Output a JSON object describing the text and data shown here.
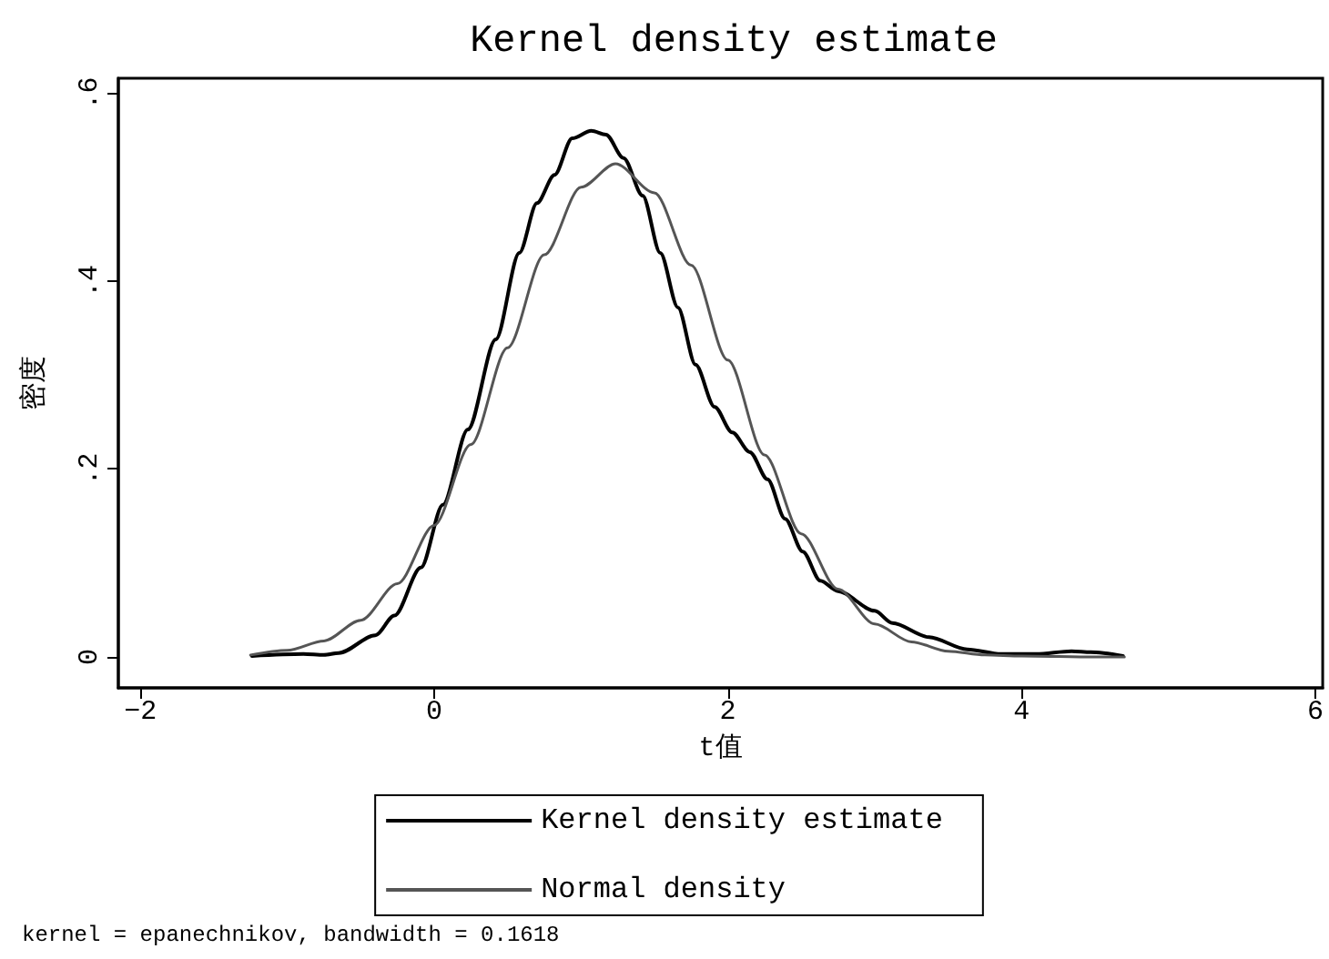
{
  "chart_data": {
    "type": "line",
    "title": "Kernel density estimate",
    "xlabel": "t值",
    "ylabel": "密度",
    "annotations": [
      "kernel = epanechnikov, bandwidth = 0.1618"
    ],
    "xlim": [
      -2.15,
      6.05
    ],
    "xticks": [
      -2,
      0,
      2,
      4,
      6
    ],
    "ylim": [
      -0.033,
      0.616
    ],
    "yticks": [
      0,
      {
        "value": 0.2,
        "label": ".2"
      },
      {
        "value": 0.4,
        "label": ".4"
      },
      {
        "value": 0.6,
        "label": ".6"
      }
    ],
    "grid": false,
    "legend": "bottom",
    "marker": "none",
    "line_style": "solid",
    "series": [
      {
        "name": "Kernel density estimate",
        "color": "#000000",
        "x": [
          -1.24,
          -0.89,
          -0.75,
          -0.65,
          -0.4,
          -0.27,
          -0.09,
          0.06,
          0.23,
          0.42,
          0.58,
          0.7,
          0.82,
          0.94,
          1.07,
          1.17,
          1.29,
          1.42,
          1.54,
          1.66,
          1.78,
          1.91,
          2.03,
          2.15,
          2.27,
          2.39,
          2.51,
          2.63,
          2.75,
          3.0,
          3.12,
          3.37,
          3.63,
          3.86,
          4.1,
          4.34,
          4.47,
          4.69
        ],
        "values": [
          0.001,
          0.003,
          0.002,
          0.004,
          0.023,
          0.044,
          0.095,
          0.162,
          0.242,
          0.338,
          0.43,
          0.483,
          0.513,
          0.552,
          0.56,
          0.556,
          0.531,
          0.491,
          0.43,
          0.372,
          0.311,
          0.266,
          0.239,
          0.218,
          0.189,
          0.147,
          0.112,
          0.081,
          0.07,
          0.049,
          0.036,
          0.021,
          0.008,
          0.003,
          0.003,
          0.006,
          0.005,
          0.001
        ]
      },
      {
        "name": "Normal density",
        "color": "#555555",
        "x": [
          -1.25,
          -1.0,
          -0.75,
          -0.5,
          -0.25,
          0,
          0.25,
          0.5,
          0.75,
          1.0,
          1.235,
          1.5,
          1.75,
          2.0,
          2.25,
          2.5,
          2.75,
          3.0,
          3.25,
          3.5,
          3.75,
          4.0,
          4.5,
          4.7
        ],
        "values": [
          0.002,
          0.007,
          0.017,
          0.039,
          0.078,
          0.14,
          0.226,
          0.329,
          0.428,
          0.5,
          0.525,
          0.494,
          0.417,
          0.316,
          0.215,
          0.131,
          0.072,
          0.035,
          0.016,
          0.006,
          0.002,
          0.001,
          0,
          0
        ]
      }
    ]
  }
}
